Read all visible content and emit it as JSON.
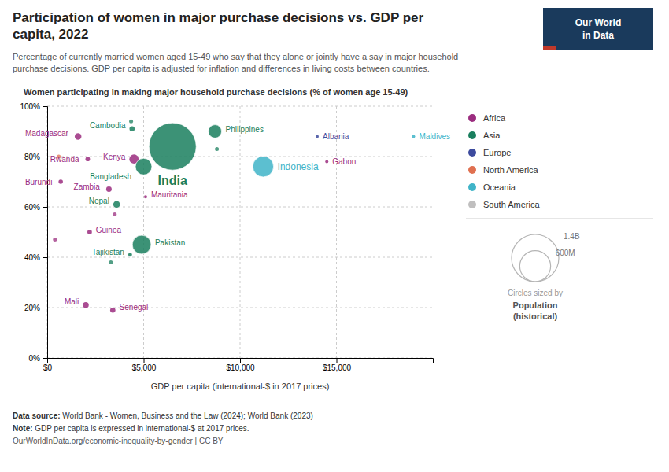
{
  "chart_data": {
    "type": "scatter",
    "title": "Participation of women in major purchase decisions vs. GDP per\ncapita, 2022",
    "subtitle": "Percentage of currently married women aged 15-49 who say that they alone or jointly have a say in major household\npurchase decisions. GDP per capita is adjusted for inflation and differences in living costs between countries.",
    "ylabel": "Women participating in making major household purchase decisions (% of women age 15-49)",
    "xlabel": "GDP per capita (international-$ in 2017 prices)",
    "source_label": "Data source:",
    "source": " World Bank - Women, Business and the Law (2024); World Bank (2023)",
    "note_label": "Note:",
    "note": " GDP per capita is expressed in international-$ at 2017 prices.",
    "url": "OurWorldInData.org/economic-inequality-by-gender | CC BY",
    "logo": "Our World\nin Data",
    "series": [
      {
        "name": "Africa",
        "color": "#9b2d7f",
        "x": [
          1600,
          2100,
          700,
          2000,
          3400,
          2200,
          3200,
          4500,
          5100,
          14500,
          400,
          3500
        ],
        "values": [
          88,
          79,
          70,
          21,
          19,
          50,
          67,
          79,
          64,
          78,
          47,
          57
        ],
        "sizes": [
          28,
          13,
          12,
          22,
          17,
          13,
          19,
          54,
          4.5,
          2.2,
          null,
          null
        ],
        "labels": [
          "Madagascar",
          "Rwanda",
          "Burundi",
          "Mali",
          "Senegal",
          "Guinea",
          "Zambia",
          "Kenya",
          "Mauritania",
          "Gabon",
          null,
          null
        ]
      },
      {
        "name": "Asia",
        "color": "#1a7f5e",
        "x": [
          4400,
          6500,
          5000,
          3600,
          4900,
          4300,
          8700,
          4350,
          3300,
          8800
        ],
        "values": [
          91,
          84,
          76,
          61,
          45,
          41,
          90,
          94,
          38,
          83
        ],
        "sizes": [
          17,
          1400,
          170,
          29,
          220,
          9.5,
          110,
          null,
          null,
          null
        ],
        "labels": [
          "Cambodia",
          "India",
          "Bangladesh",
          "Nepal",
          "Pakistan",
          "Tajikistan",
          "Philippines",
          null,
          null,
          null
        ]
      },
      {
        "name": "Europe",
        "color": "#3d4b9e",
        "x": [
          14000
        ],
        "values": [
          88
        ],
        "sizes": [
          2.8
        ],
        "labels": [
          "Albania"
        ]
      },
      {
        "name": "North America",
        "color": "#e07050",
        "x": [
          600
        ],
        "values": [
          80
        ],
        "sizes": [
          null
        ],
        "labels": [
          null
        ]
      },
      {
        "name": "Oceania",
        "color": "#40b4c8",
        "x": [
          11200,
          19000
        ],
        "values": [
          76,
          88
        ],
        "sizes": [
          270,
          0.5
        ],
        "labels": [
          "Indonesia",
          "Maldives"
        ]
      },
      {
        "name": "South America",
        "color": "#c0bfbf",
        "x": [],
        "values": [],
        "sizes": [],
        "labels": []
      }
    ],
    "size_legend": {
      "title": "Circles sized by",
      "label": "Population\n(historical)",
      "ticks": [
        {
          "value": 1400,
          "label": "1.4B"
        },
        {
          "value": 600,
          "label": "600M"
        }
      ]
    },
    "xlim": [
      0,
      20000
    ],
    "ylim": [
      0,
      100
    ],
    "xticks": [
      {
        "value": 0,
        "label": "$0"
      },
      {
        "value": 5000,
        "label": "$5,000"
      },
      {
        "value": 10000,
        "label": "$10,000"
      },
      {
        "value": 15000,
        "label": "$15,000"
      }
    ],
    "yticks": [
      {
        "value": 0,
        "label": "0%"
      },
      {
        "value": 20,
        "label": "20%"
      },
      {
        "value": 40,
        "label": "40%"
      },
      {
        "value": 60,
        "label": "60%"
      },
      {
        "value": 80,
        "label": "80%"
      },
      {
        "value": 100,
        "label": "100%"
      }
    ],
    "grid": true
  }
}
